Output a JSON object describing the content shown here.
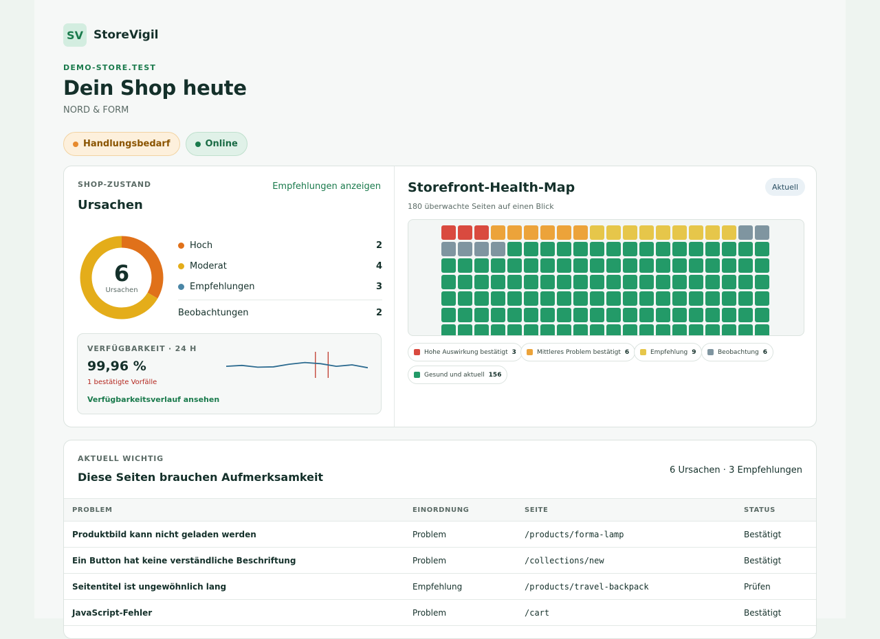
{
  "brand": {
    "logo_text": "SV",
    "name": "StoreVigil"
  },
  "store": {
    "domain": "DEMO-STORE.TEST",
    "title": "Dein Shop heute",
    "name": "NORD & FORM"
  },
  "badges": {
    "status": "Handlungsbedarf",
    "connection": "Online"
  },
  "shop_state": {
    "eyebrow": "SHOP-ZUSTAND",
    "title": "Ursachen",
    "link": "Empfehlungen anzeigen",
    "donut": {
      "total": "6",
      "label": "Ursachen"
    },
    "legend": [
      {
        "label": "Hoch",
        "value": "2",
        "color": "#e0711a"
      },
      {
        "label": "Moderat",
        "value": "4",
        "color": "#e4ad1a"
      },
      {
        "label": "Empfehlungen",
        "value": "3",
        "color": "#4a86a6"
      }
    ],
    "observations": {
      "label": "Beobachtungen",
      "value": "2"
    },
    "donut_segments": [
      {
        "value": 2,
        "color": "#e0711a"
      },
      {
        "value": 4,
        "color": "#e4ad1a"
      }
    ]
  },
  "availability": {
    "eyebrow": "VERFÜGBARKEIT · 24 H",
    "value": "99,96 %",
    "incidents": "1 bestätigte Vorfälle",
    "link": "Verfügbarkeitsverlauf ansehen",
    "series": [
      0.55,
      0.52,
      0.58,
      0.57,
      0.48,
      0.42,
      0.46,
      0.55,
      0.5,
      0.6
    ],
    "incident_marks": [
      0.63,
      0.72
    ]
  },
  "health_map": {
    "title": "Storefront-Health-Map",
    "subtitle": "180 überwachte Seiten auf einen Blick",
    "chip": "Aktuell",
    "categories": [
      {
        "label": "Hohe Auswirkung bestätigt",
        "count": "3",
        "color": "#d94a3f"
      },
      {
        "label": "Mittleres Problem bestätigt",
        "count": "6",
        "color": "#eca33a"
      },
      {
        "label": "Empfehlung",
        "count": "9",
        "color": "#e6c64a"
      },
      {
        "label": "Beobachtung",
        "count": "6",
        "color": "#7f95a0"
      },
      {
        "label": "Gesund und aktuell",
        "count": "156",
        "color": "#239a68"
      }
    ]
  },
  "attention": {
    "eyebrow": "AKTUELL WICHTIG",
    "title": "Diese Seiten brauchen Aufmerksamkeit",
    "summary": "6 Ursachen · 3 Empfehlungen",
    "columns": [
      "PROBLEM",
      "EINORDNUNG",
      "SEITE",
      "STATUS"
    ],
    "rows": [
      {
        "problem": "Produktbild kann nicht geladen werden",
        "category": "Problem",
        "page": "/products/forma-lamp",
        "status": "Bestätigt"
      },
      {
        "problem": "Ein Button hat keine verständliche Beschriftung",
        "category": "Problem",
        "page": "/collections/new",
        "status": "Bestätigt"
      },
      {
        "problem": "Seitentitel ist ungewöhnlich lang",
        "category": "Empfehlung",
        "page": "/products/travel-backpack",
        "status": "Prüfen"
      },
      {
        "problem": "JavaScript-Fehler",
        "category": "Problem",
        "page": "/cart",
        "status": "Bestätigt"
      }
    ]
  }
}
